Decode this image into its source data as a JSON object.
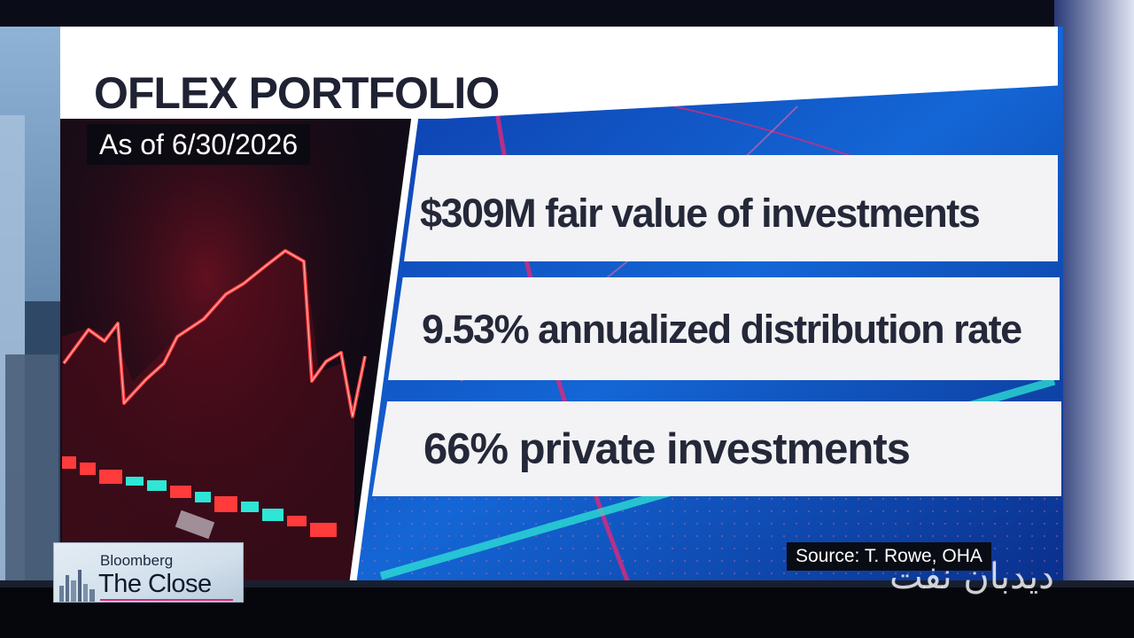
{
  "graphic": {
    "title": "OFLEX PORTFOLIO",
    "as_of": "As of 6/30/2026",
    "stats": [
      "$309M fair value of investments",
      "9.53% annualized distribution rate",
      "66% private investments"
    ],
    "source": "Source: T. Rowe, OHA"
  },
  "logo": {
    "brand": "Bloomberg",
    "show": "The Close"
  },
  "watermark": "ديدبان نفت",
  "colors": {
    "text_dark": "#242838",
    "accent_pink": "#e0287a",
    "stock_red": "#ff3b3b",
    "stock_teal": "#2ee6d6",
    "panel_blue": "#1466d6"
  },
  "icons": [
    "skyline-icon"
  ]
}
